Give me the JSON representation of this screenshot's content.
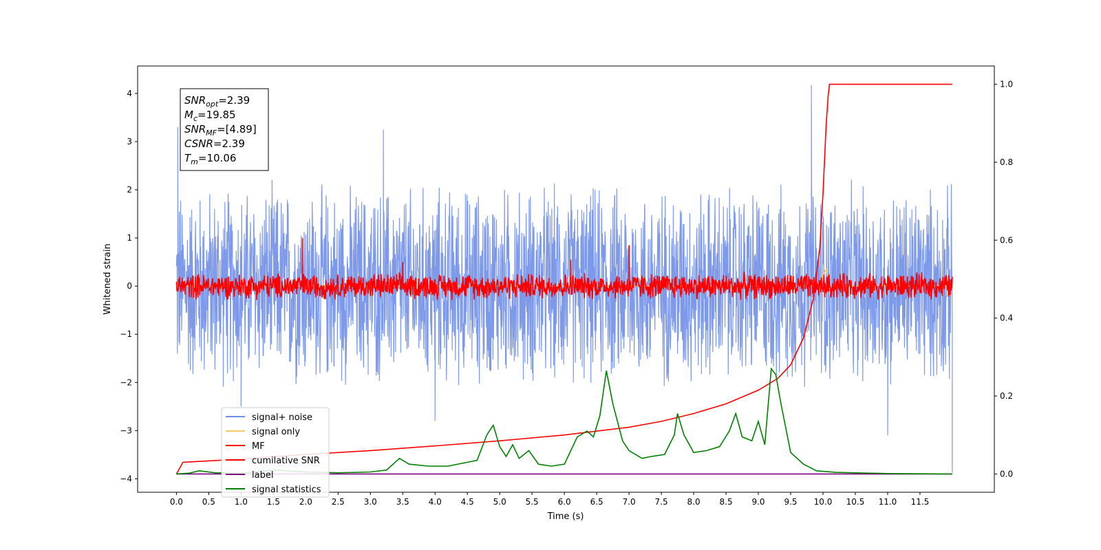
{
  "chart_data": {
    "type": "line",
    "xlabel": "Time (s)",
    "ylabel": "Whitened strain",
    "xlim": [
      -0.6,
      12.65
    ],
    "ylim_left": [
      -4.28,
      4.57
    ],
    "ylim_right": [
      -0.047,
      1.047
    ],
    "x_ticks": [
      "0.0",
      "0.5",
      "1.0",
      "1.5",
      "2.0",
      "2.5",
      "3.0",
      "3.5",
      "4.0",
      "4.5",
      "5.0",
      "5.5",
      "6.0",
      "6.5",
      "7.0",
      "7.5",
      "8.0",
      "8.5",
      "9.0",
      "9.5",
      "10.0",
      "10.5",
      "11.0",
      "11.5"
    ],
    "y_ticks_left": [
      "−4",
      "−3",
      "−2",
      "−1",
      "0",
      "1",
      "2",
      "3",
      "4"
    ],
    "y_ticks_right": [
      "0.0",
      "0.2",
      "0.4",
      "0.6",
      "0.8",
      "1.0"
    ],
    "annotation": [
      {
        "sym": "SNR",
        "sub": "opt",
        "rest": "=2.39"
      },
      {
        "sym": "M",
        "sub": "c",
        "rest": "=19.85"
      },
      {
        "sym": "SNR",
        "sub": "MF",
        "rest": "=[4.89]"
      },
      {
        "sym": "CSNR",
        "sub": "",
        "rest": "=2.39"
      },
      {
        "sym": "T",
        "sub": "m",
        "rest": "=10.06"
      }
    ],
    "legend_position": "lower-left",
    "series": [
      {
        "name": "signal+ noise",
        "axis": "left",
        "color": "#6f8ee6",
        "description": "noise band",
        "band": [
          -2.5,
          3.0
        ],
        "x_range": [
          0,
          12
        ],
        "spikes": [
          [
            0.02,
            3.3
          ],
          [
            3.2,
            3.25
          ],
          [
            9.82,
            4.17
          ],
          [
            12.0,
            -3.87
          ],
          [
            1.0,
            -2.5
          ],
          [
            4.0,
            -2.8
          ],
          [
            11.0,
            -3.1
          ]
        ]
      },
      {
        "name": "signal only",
        "axis": "left",
        "color": "#f5c96b",
        "points": [
          [
            0,
            0
          ],
          [
            9.9,
            0
          ],
          [
            10.05,
            0.35
          ],
          [
            10.1,
            0
          ],
          [
            12,
            0
          ]
        ]
      },
      {
        "name": "MF",
        "axis": "left",
        "color": "#ff0000",
        "description": "noise band",
        "band": [
          -0.35,
          0.35
        ],
        "x_range": [
          0,
          12
        ],
        "spikes": [
          [
            1.95,
            1.0
          ],
          [
            3.5,
            0.5
          ],
          [
            6.1,
            0.55
          ],
          [
            7.0,
            0.85
          ],
          [
            9.8,
            -0.2
          ]
        ]
      },
      {
        "name": "cumilative SNR",
        "axis": "right",
        "color": "#ff0000",
        "points": [
          [
            0,
            0.0
          ],
          [
            0.1,
            0.03
          ],
          [
            1,
            0.038
          ],
          [
            2,
            0.05
          ],
          [
            3,
            0.06
          ],
          [
            4,
            0.072
          ],
          [
            5,
            0.085
          ],
          [
            6,
            0.1
          ],
          [
            7,
            0.12
          ],
          [
            7.5,
            0.135
          ],
          [
            8,
            0.155
          ],
          [
            8.5,
            0.18
          ],
          [
            9,
            0.215
          ],
          [
            9.3,
            0.245
          ],
          [
            9.5,
            0.28
          ],
          [
            9.7,
            0.35
          ],
          [
            9.85,
            0.45
          ],
          [
            9.95,
            0.58
          ],
          [
            10.0,
            0.72
          ],
          [
            10.05,
            0.9
          ],
          [
            10.08,
            0.97
          ],
          [
            10.1,
            1.0
          ],
          [
            12,
            1.0
          ]
        ]
      },
      {
        "name": "label",
        "axis": "right",
        "color": "#800080",
        "points": [
          [
            0,
            0.0
          ],
          [
            12,
            0.0
          ]
        ]
      },
      {
        "name": "signal statistics",
        "axis": "right",
        "color": "#008000",
        "points": [
          [
            0,
            0.0
          ],
          [
            0.2,
            0.002
          ],
          [
            0.35,
            0.008
          ],
          [
            0.6,
            0.003
          ],
          [
            1,
            0.002
          ],
          [
            1.5,
            0.01
          ],
          [
            2,
            0.005
          ],
          [
            2.5,
            0.003
          ],
          [
            3,
            0.005
          ],
          [
            3.25,
            0.01
          ],
          [
            3.45,
            0.04
          ],
          [
            3.6,
            0.025
          ],
          [
            3.9,
            0.02
          ],
          [
            4.2,
            0.02
          ],
          [
            4.5,
            0.03
          ],
          [
            4.65,
            0.035
          ],
          [
            4.8,
            0.1
          ],
          [
            4.9,
            0.125
          ],
          [
            5.0,
            0.07
          ],
          [
            5.1,
            0.045
          ],
          [
            5.2,
            0.075
          ],
          [
            5.3,
            0.04
          ],
          [
            5.45,
            0.06
          ],
          [
            5.6,
            0.025
          ],
          [
            5.8,
            0.02
          ],
          [
            6.0,
            0.025
          ],
          [
            6.2,
            0.095
          ],
          [
            6.35,
            0.11
          ],
          [
            6.45,
            0.095
          ],
          [
            6.55,
            0.15
          ],
          [
            6.65,
            0.265
          ],
          [
            6.75,
            0.18
          ],
          [
            6.9,
            0.085
          ],
          [
            7.0,
            0.06
          ],
          [
            7.2,
            0.04
          ],
          [
            7.35,
            0.045
          ],
          [
            7.55,
            0.05
          ],
          [
            7.7,
            0.1
          ],
          [
            7.75,
            0.155
          ],
          [
            7.85,
            0.1
          ],
          [
            8.0,
            0.055
          ],
          [
            8.2,
            0.06
          ],
          [
            8.4,
            0.07
          ],
          [
            8.55,
            0.11
          ],
          [
            8.65,
            0.155
          ],
          [
            8.75,
            0.095
          ],
          [
            8.9,
            0.085
          ],
          [
            9.0,
            0.135
          ],
          [
            9.1,
            0.075
          ],
          [
            9.2,
            0.27
          ],
          [
            9.27,
            0.255
          ],
          [
            9.35,
            0.18
          ],
          [
            9.5,
            0.055
          ],
          [
            9.7,
            0.025
          ],
          [
            9.9,
            0.008
          ],
          [
            10.2,
            0.004
          ],
          [
            11,
            0.001
          ],
          [
            12,
            0.0
          ]
        ]
      }
    ]
  }
}
